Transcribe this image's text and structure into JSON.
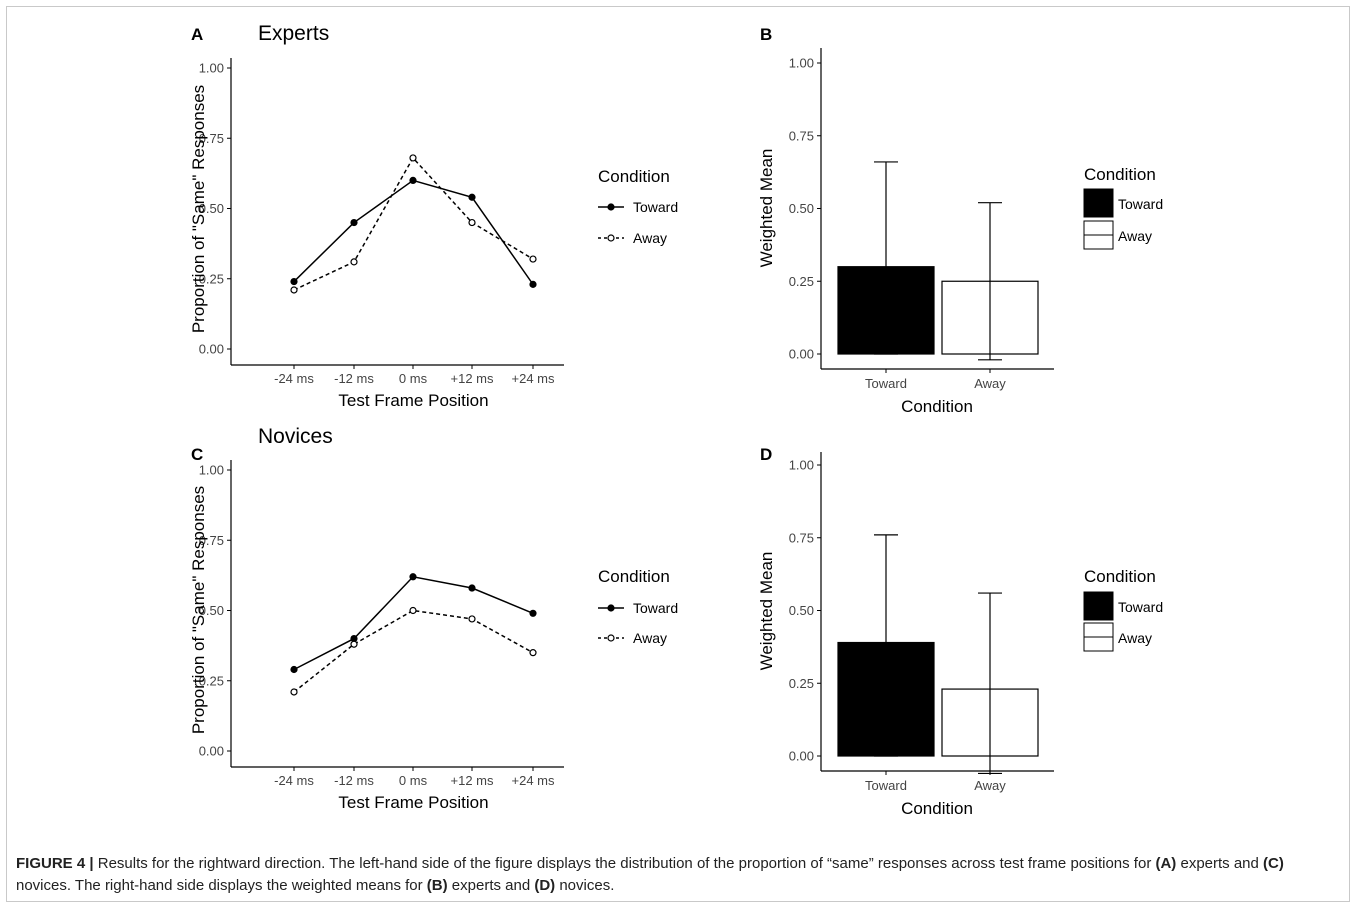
{
  "figure": {
    "caption": {
      "label": "FIGURE 4",
      "sep": "|",
      "text1": "Results for the rightward direction. The left-hand side of the figure displays the distribution of the proportion of “same” responses across test frame positions for ",
      "refA": "(A)",
      "text2": " experts and ",
      "refC": "(C)",
      "text3": " novices. The right-hand side displays the weighted means for ",
      "refB": "(B)",
      "text4": " experts and ",
      "refD": "(D)",
      "text5": " novices."
    }
  },
  "chart_data": [
    {
      "panel": "A",
      "type": "line",
      "title": "Experts",
      "xlabel": "Test Frame Position",
      "ylabel": "Proportion of \"Same\" Responses",
      "categories": [
        "-24 ms",
        "-12 ms",
        "0 ms",
        "+12 ms",
        "+24 ms"
      ],
      "series": [
        {
          "name": "Toward",
          "values": [
            0.24,
            0.45,
            0.6,
            0.54,
            0.23
          ],
          "line": "solid",
          "marker": "filled"
        },
        {
          "name": "Away",
          "values": [
            0.21,
            0.31,
            0.68,
            0.45,
            0.32
          ],
          "line": "dashed",
          "marker": "open"
        }
      ],
      "yticks": [
        0,
        0.25,
        0.5,
        0.75,
        1.0
      ],
      "ytick_labels": [
        "0.00",
        "0.25",
        "0.50",
        "0.75",
        "1.00"
      ],
      "ylim": [
        0,
        1.0
      ],
      "legend_title": "Condition",
      "legend_position": "right",
      "grid": false
    },
    {
      "panel": "B",
      "type": "bar",
      "title": "",
      "xlabel": "Condition",
      "ylabel": "Weighted Mean",
      "categories": [
        "Toward",
        "Away"
      ],
      "values": [
        0.3,
        0.25
      ],
      "error_high": [
        0.66,
        0.52
      ],
      "error_low": [
        0.0,
        -0.02
      ],
      "colors": [
        "#000000",
        "#ffffff"
      ],
      "yticks": [
        0,
        0.25,
        0.5,
        0.75,
        1.0
      ],
      "ytick_labels": [
        "0.00",
        "0.25",
        "0.50",
        "0.75",
        "1.00"
      ],
      "ylim": [
        -0.04,
        1.0
      ],
      "legend_title": "Condition",
      "legend_entries": [
        "Toward",
        "Away"
      ],
      "legend_position": "right",
      "grid": false
    },
    {
      "panel": "C",
      "type": "line",
      "title": "Novices",
      "xlabel": "Test Frame Position",
      "ylabel": "Proportion of \"Same\" Responses",
      "categories": [
        "-24 ms",
        "-12 ms",
        "0 ms",
        "+12 ms",
        "+24 ms"
      ],
      "series": [
        {
          "name": "Toward",
          "values": [
            0.29,
            0.4,
            0.62,
            0.58,
            0.49
          ],
          "line": "solid",
          "marker": "filled"
        },
        {
          "name": "Away",
          "values": [
            0.21,
            0.38,
            0.5,
            0.47,
            0.35
          ],
          "line": "dashed",
          "marker": "open"
        }
      ],
      "yticks": [
        0,
        0.25,
        0.5,
        0.75,
        1.0
      ],
      "ytick_labels": [
        "0.00",
        "0.25",
        "0.50",
        "0.75",
        "1.00"
      ],
      "ylim": [
        0,
        1.0
      ],
      "legend_title": "Condition",
      "legend_position": "right",
      "grid": false
    },
    {
      "panel": "D",
      "type": "bar",
      "title": "",
      "xlabel": "Condition",
      "ylabel": "Weighted Mean",
      "categories": [
        "Toward",
        "Away"
      ],
      "values": [
        0.39,
        0.23
      ],
      "error_high": [
        0.76,
        0.56
      ],
      "error_low": [
        0.0,
        -0.06
      ],
      "colors": [
        "#000000",
        "#ffffff"
      ],
      "yticks": [
        0,
        0.25,
        0.5,
        0.75,
        1.0
      ],
      "ytick_labels": [
        "0.00",
        "0.25",
        "0.50",
        "0.75",
        "1.00"
      ],
      "ylim": [
        -0.04,
        1.0
      ],
      "legend_title": "Condition",
      "legend_entries": [
        "Toward",
        "Away"
      ],
      "legend_position": "right",
      "grid": false
    }
  ]
}
